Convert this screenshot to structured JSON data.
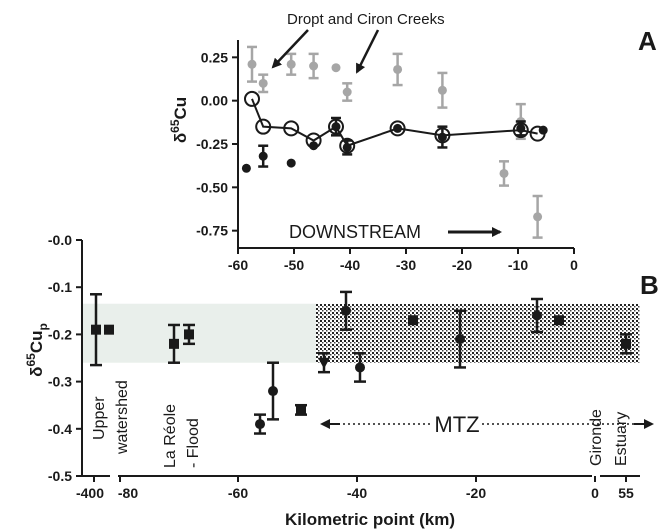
{
  "chart_data": [
    {
      "id": "A",
      "type": "scatter",
      "panel_label": "A",
      "ylabel_html": "δ<sup>65</sup>Cu",
      "ylabel": {
        "pre": "δ",
        "sup": "65",
        "base": "Cu"
      },
      "xlim": [
        -60,
        0
      ],
      "ylim": [
        -0.85,
        0.35
      ],
      "xticks": [
        -60,
        -50,
        -40,
        -30,
        -20,
        -10,
        0
      ],
      "yticks": [
        0.25,
        0.0,
        -0.25,
        -0.5,
        -0.75
      ],
      "ytick_labels": [
        "0.25",
        "0.00",
        "-0.25",
        "-0.50",
        "-0.75"
      ],
      "annotations": [
        {
          "text": "Dropt and Ciron Creeks",
          "arrows_to": [
            [
              -56,
              0.14
            ],
            [
              -40,
              0.1
            ]
          ]
        },
        {
          "text": "DOWNSTREAM",
          "arrow": true,
          "at": [
            -43,
            -0.7
          ]
        }
      ],
      "colors": {
        "gray": "#a6a6a6",
        "black": "#1a1a1a",
        "open": "#ffffff"
      },
      "series": [
        {
          "style": "gray-filled",
          "points": [
            {
              "x": -57.5,
              "y": 0.21,
              "err": 0.1
            },
            {
              "x": -55.5,
              "y": 0.1,
              "err": 0.05
            },
            {
              "x": -50.5,
              "y": 0.21,
              "err": 0.06
            },
            {
              "x": -46.5,
              "y": 0.2,
              "err": 0.07
            },
            {
              "x": -42.5,
              "y": 0.19,
              "err": 0
            },
            {
              "x": -40.5,
              "y": 0.05,
              "err": 0.05
            },
            {
              "x": -31.5,
              "y": 0.18,
              "err": 0.09
            },
            {
              "x": -23.5,
              "y": 0.06,
              "err": 0.1
            },
            {
              "x": -12.5,
              "y": -0.42,
              "err": 0.07
            },
            {
              "x": -9.5,
              "y": -0.12,
              "err": 0.1
            },
            {
              "x": -6.5,
              "y": -0.67,
              "err": 0.12
            }
          ]
        },
        {
          "style": "open-line",
          "points": [
            {
              "x": -57.5,
              "y": 0.01,
              "err": 0
            },
            {
              "x": -55.5,
              "y": -0.15,
              "err": 0
            },
            {
              "x": -50.5,
              "y": -0.16,
              "err": 0
            },
            {
              "x": -46.5,
              "y": -0.23,
              "err": 0
            },
            {
              "x": -42.5,
              "y": -0.15,
              "err": 0
            },
            {
              "x": -40.5,
              "y": -0.26,
              "err": 0
            },
            {
              "x": -31.5,
              "y": -0.16,
              "err": 0
            },
            {
              "x": -23.5,
              "y": -0.2,
              "err": 0
            },
            {
              "x": -9.5,
              "y": -0.17,
              "err": 0
            },
            {
              "x": -6.5,
              "y": -0.19,
              "err": 0
            }
          ]
        },
        {
          "style": "black-filled",
          "points": [
            {
              "x": -58.5,
              "y": -0.39,
              "err": 0
            },
            {
              "x": -55.5,
              "y": -0.32,
              "err": 0.06
            },
            {
              "x": -50.5,
              "y": -0.36,
              "err": 0
            },
            {
              "x": -46.5,
              "y": -0.26,
              "err": 0
            },
            {
              "x": -42.5,
              "y": -0.15,
              "err": 0.05
            },
            {
              "x": -40.5,
              "y": -0.27,
              "err": 0.04
            },
            {
              "x": -31.5,
              "y": -0.16,
              "err": 0
            },
            {
              "x": -23.5,
              "y": -0.21,
              "err": 0.06
            },
            {
              "x": -9.5,
              "y": -0.16,
              "err": 0.04
            },
            {
              "x": -5.5,
              "y": -0.17,
              "err": 0
            }
          ]
        }
      ]
    },
    {
      "id": "B",
      "type": "scatter",
      "panel_label": "B",
      "xlabel": "Kilometric point (km)",
      "ylabel": {
        "pre": "δ",
        "sup": "65",
        "base": "Cu",
        "sub": "p"
      },
      "ylim": [
        -0.5,
        0.0
      ],
      "yticks": [
        0.0,
        -0.1,
        -0.2,
        -0.3,
        -0.4,
        -0.5
      ],
      "ytick_labels": [
        "-0.0",
        "-0.1",
        "-0.2",
        "-0.3",
        "-0.4",
        "-0.5"
      ],
      "x_broken_axis": true,
      "xticks": [
        {
          "label": "-400",
          "pos": -400
        },
        {
          "label": "-80",
          "pos": -80
        },
        {
          "label": "-60",
          "pos": -60
        },
        {
          "label": "-40",
          "pos": -40
        },
        {
          "label": "-20",
          "pos": -20
        },
        {
          "label": "0",
          "pos": 0
        },
        {
          "label": "55",
          "pos": 55
        }
      ],
      "bands": [
        {
          "name": "watershed-band",
          "x_range": [
            -400,
            -48
          ],
          "y_range": [
            -0.26,
            -0.135
          ],
          "fill": "#e9efeb"
        },
        {
          "name": "mtz-band",
          "x_range": [
            -48,
            55
          ],
          "y_range": [
            -0.26,
            -0.135
          ],
          "fill": "dotted"
        }
      ],
      "labels": [
        {
          "text": "Upper",
          "at": -401
        },
        {
          "text": "watershed",
          "at": -399
        },
        {
          "text": "La Réole",
          "at": -72
        },
        {
          "text": "- Flood",
          "at": -70
        },
        {
          "text": "Gironde",
          "at": 54
        },
        {
          "text": "Estuary",
          "at": 56
        }
      ],
      "mtz": {
        "text": "MTZ",
        "from": -49,
        "to": 56
      },
      "points": [
        {
          "x": -400.5,
          "y": -0.19,
          "err": 0.075,
          "marker": "square"
        },
        {
          "x": -398.5,
          "y": -0.19,
          "err": 0,
          "marker": "square"
        },
        {
          "x": -72,
          "y": -0.22,
          "err": 0.04,
          "marker": "square"
        },
        {
          "x": -69.5,
          "y": -0.2,
          "err": 0.02,
          "marker": "square"
        },
        {
          "x": -58,
          "y": -0.39,
          "err": 0.02,
          "marker": "circle"
        },
        {
          "x": -55.5,
          "y": -0.32,
          "err": 0.06,
          "marker": "circle"
        },
        {
          "x": -50.5,
          "y": -0.36,
          "err": 0.01,
          "marker": "square"
        },
        {
          "x": -46.5,
          "y": -0.26,
          "err": 0.02,
          "marker": "triangle"
        },
        {
          "x": -43,
          "y": -0.15,
          "err": 0.04,
          "marker": "circle"
        },
        {
          "x": -40.5,
          "y": -0.27,
          "err": 0.03,
          "marker": "circle"
        },
        {
          "x": -31.5,
          "y": -0.17,
          "err": 0,
          "marker": "square"
        },
        {
          "x": -23.5,
          "y": -0.21,
          "err": 0.06,
          "marker": "circle"
        },
        {
          "x": -9.5,
          "y": -0.16,
          "err": 0.035,
          "marker": "circle"
        },
        {
          "x": -5.5,
          "y": -0.17,
          "err": 0,
          "marker": "square"
        },
        {
          "x": 55,
          "y": -0.22,
          "err": 0.02,
          "marker": "square"
        }
      ]
    }
  ]
}
